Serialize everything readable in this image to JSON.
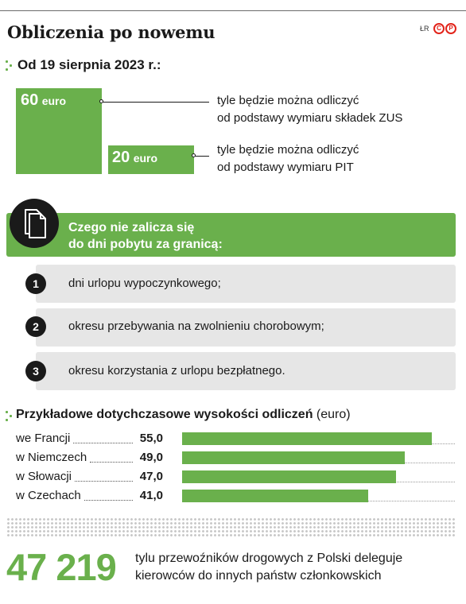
{
  "header": {
    "title": "Obliczenia po nowemu",
    "credit": "ŁR",
    "logo_letters": [
      "C",
      "P"
    ],
    "accent_color": "#6ab04c",
    "logo_color": "#e2231a"
  },
  "section1": {
    "heading": "Od 19 sierpnia 2023 r.:"
  },
  "chart_data": [
    {
      "type": "bar",
      "categories": [
        "ZUS",
        "PIT"
      ],
      "values": [
        60,
        20
      ],
      "unit": "euro",
      "labels": [
        {
          "value": "60",
          "unit": "euro",
          "desc_line1": "tyle będzie można odliczyć",
          "desc_line2": "od podstawy wymiaru składek ZUS"
        },
        {
          "value": "20",
          "unit": "euro",
          "desc_line1": "tyle będzie można odliczyć",
          "desc_line2": "od podstawy wymiaru PIT"
        }
      ]
    },
    {
      "type": "bar",
      "orientation": "horizontal",
      "title_bold": "Przykładowe dotychczasowe wysokości odliczeń",
      "title_unit": "(euro)",
      "categories": [
        "we Francji",
        "w Niemczech",
        "w Słowacji",
        "w Czechach"
      ],
      "values": [
        55.0,
        49.0,
        47.0,
        41.0
      ],
      "value_labels": [
        "55,0",
        "49,0",
        "47,0",
        "41,0"
      ],
      "xlim": [
        0,
        60
      ]
    }
  ],
  "banner": {
    "line1": "Czego nie zalicza się",
    "line2": "do dni pobytu za granicą:",
    "icon": "documents-icon"
  },
  "list": [
    {
      "num": "1",
      "text": "dni urlopu wypoczynkowego;"
    },
    {
      "num": "2",
      "text": "okresu przebywania na zwolnieniu chorobowym;"
    },
    {
      "num": "3",
      "text": "okresu korzystania z urlopu bezpłatnego."
    }
  ],
  "footer": {
    "number": "47 219",
    "line1": "tylu przewoźników drogowych z Polski deleguje",
    "line2": "kierowców do innych państw członkowskich"
  }
}
